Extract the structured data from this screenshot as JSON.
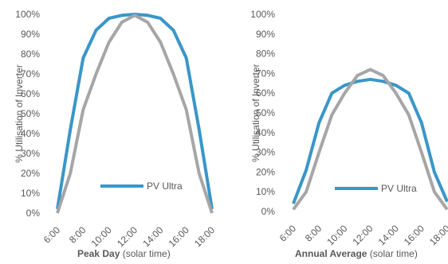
{
  "chart_data": [
    {
      "type": "line",
      "title": "",
      "xlabel_bold": "Peak Day",
      "xlabel_rest": " (solar time)",
      "ylabel": "% Utilisation of Inverter",
      "ylim": [
        0,
        100
      ],
      "yticks": [
        "0%",
        "10%",
        "20%",
        "30%",
        "40%",
        "50%",
        "60%",
        "70%",
        "80%",
        "90%",
        "100%"
      ],
      "xticks": [
        "6:00",
        "8:00",
        "10:00",
        "12:00",
        "14:00",
        "16:00",
        "18:00"
      ],
      "x": [
        6,
        7,
        8,
        9,
        10,
        11,
        12,
        13,
        14,
        15,
        16,
        17,
        18
      ],
      "grid": false,
      "legend_position": "bottom-center",
      "series": [
        {
          "name": "PV Ultra",
          "color": "#3A96C8",
          "width": 4,
          "values": [
            2,
            42,
            78,
            92,
            98,
            99.5,
            100,
            99.5,
            98,
            92,
            78,
            42,
            2
          ]
        },
        {
          "name": "",
          "color": "#A6A6A6",
          "width": 4,
          "values": [
            0,
            20,
            52,
            70,
            86,
            96,
            99.5,
            96,
            86,
            70,
            52,
            20,
            0
          ]
        }
      ]
    },
    {
      "type": "line",
      "title": "",
      "xlabel_bold": "Annual Average",
      "xlabel_rest": " (solar time)",
      "ylabel": "% Utilisation of Inverter",
      "ylim": [
        0,
        100
      ],
      "yticks": [
        "0%",
        "10%",
        "20%",
        "30%",
        "40%",
        "50%",
        "60%",
        "70%",
        "80%",
        "90%",
        "100%"
      ],
      "xticks": [
        "6:00",
        "8:00",
        "10:00",
        "12:00",
        "14:00",
        "16:00",
        "18:00"
      ],
      "x": [
        6,
        7,
        8,
        9,
        10,
        11,
        12,
        13,
        14,
        15,
        16,
        17,
        18
      ],
      "grid": false,
      "legend_position": "bottom-center",
      "series": [
        {
          "name": "PV Ultra",
          "color": "#3A96C8",
          "width": 4,
          "values": [
            4,
            21,
            45,
            60,
            64,
            66,
            67,
            66,
            64,
            60,
            45,
            20,
            5
          ]
        },
        {
          "name": "",
          "color": "#A6A6A6",
          "width": 4,
          "values": [
            1,
            10,
            30,
            49,
            60,
            69,
            72,
            69,
            60,
            49,
            30,
            10,
            1
          ]
        }
      ]
    }
  ]
}
